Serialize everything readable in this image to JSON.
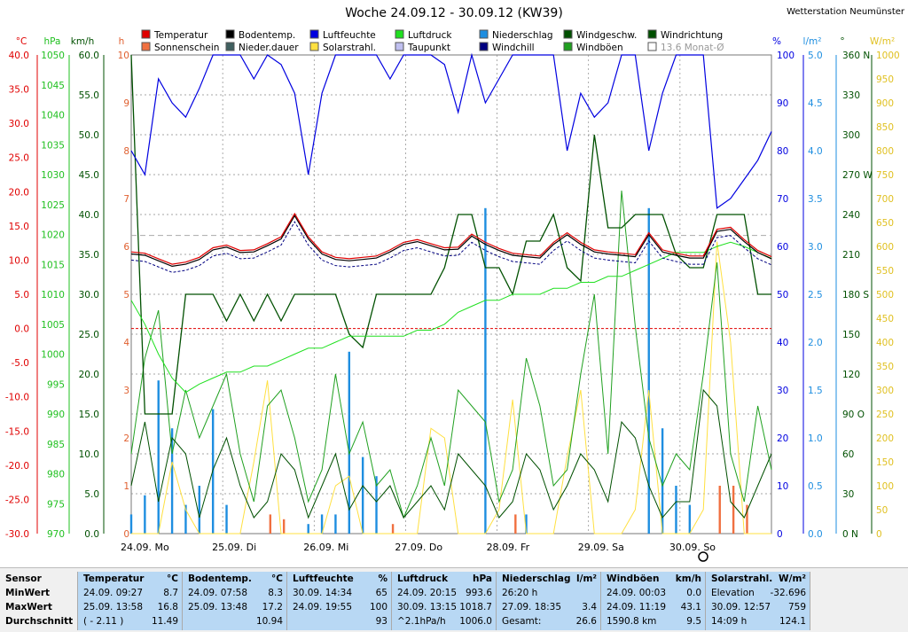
{
  "chart_data": {
    "type": "line",
    "title": "Woche 24.09.12 - 30.09.12 (KW39)",
    "station": "Wetterstation Neumünster",
    "x_labels": [
      "24.09.  Mo",
      "25.09.  Di",
      "26.09.  Mi",
      "27.09.  Do",
      "28.09.  Fr",
      "29.09.  Sa",
      "30.09.  So"
    ],
    "legend": [
      {
        "label": "Temperatur",
        "color": "#e00000"
      },
      {
        "label": "Bodentemp.",
        "color": "#000000"
      },
      {
        "label": "Luftfeuchte",
        "color": "#0000e0"
      },
      {
        "label": "Luftdruck",
        "color": "#20e020"
      },
      {
        "label": "Niederschlag",
        "color": "#1e8ee0"
      },
      {
        "label": "Windgeschw.",
        "color": "#005000"
      },
      {
        "label": "Windrichtung",
        "color": "#005000"
      },
      {
        "label": "Sonnenschein",
        "color": "#f07040"
      },
      {
        "label": "Nieder.dauer",
        "color": "#406060"
      },
      {
        "label": "Solarstrahl.",
        "color": "#ffe040"
      },
      {
        "label": "Taupunkt",
        "color": "#c0c0f0"
      },
      {
        "label": "Windchill",
        "color": "#000080"
      },
      {
        "label": "Windböen",
        "color": "#20a020"
      },
      {
        "label": "13.6 Monat-Ø",
        "color": "#ffffff"
      }
    ],
    "axes": {
      "temp": {
        "unit": "°C",
        "ticks": [
          "40.0",
          "35.0",
          "30.0",
          "25.0",
          "20.0",
          "15.0",
          "10.0",
          "5.0",
          "0.0",
          "-5.0",
          "-10.0",
          "-15.0",
          "-20.0",
          "-25.0",
          "-30.0"
        ]
      },
      "pressure": {
        "unit": "hPa",
        "ticks": [
          "1050",
          "1045",
          "1040",
          "1035",
          "1030",
          "1025",
          "1020",
          "1015",
          "1010",
          "1005",
          "1000",
          "995",
          "990",
          "985",
          "980",
          "975",
          "970"
        ]
      },
      "wind": {
        "unit": "km/h",
        "ticks": [
          "60.0",
          "55.0",
          "50.0",
          "45.0",
          "40.0",
          "35.0",
          "30.0",
          "25.0",
          "20.0",
          "15.0",
          "10.0",
          "5.0",
          "0.0"
        ]
      },
      "hours": {
        "unit": "h",
        "ticks": [
          "10",
          "9",
          "8",
          "7",
          "6",
          "5",
          "4",
          "3",
          "2",
          "1",
          "0"
        ]
      },
      "humidity": {
        "unit": "%",
        "ticks": [
          "100",
          "90",
          "80",
          "70",
          "60",
          "50",
          "40",
          "30",
          "20",
          "10",
          "0"
        ]
      },
      "rain": {
        "unit": "l/m²",
        "ticks": [
          "5.0",
          "4.5",
          "4.0",
          "3.5",
          "3.0",
          "2.5",
          "2.0",
          "1.5",
          "1.0",
          "0.5",
          "0.0"
        ]
      },
      "direction": {
        "unit": "°",
        "ticks": [
          "360 N",
          "330",
          "300",
          "270 W",
          "240",
          "210",
          "180 S",
          "150",
          "120",
          "90  O",
          "60",
          "30",
          "0     N"
        ]
      },
      "solar": {
        "unit": "W/m²",
        "ticks": [
          "1000",
          "950",
          "900",
          "850",
          "800",
          "750",
          "700",
          "650",
          "600",
          "550",
          "500",
          "450",
          "400",
          "350",
          "300",
          "250",
          "200",
          "150",
          "100",
          "50",
          "0"
        ]
      }
    },
    "series": [
      {
        "name": "Temperatur",
        "unit": "°C",
        "values": [
          11.2,
          11.0,
          10.2,
          9.4,
          9.7,
          10.4,
          11.8,
          12.2,
          11.4,
          11.5,
          12.4,
          13.4,
          16.8,
          13.4,
          11.2,
          10.4,
          10.2,
          10.4,
          10.6,
          11.5,
          12.6,
          13.0,
          12.4,
          11.8,
          11.9,
          13.8,
          12.6,
          11.7,
          11.0,
          10.8,
          10.6,
          12.6,
          14.0,
          12.6,
          11.5,
          11.2,
          11.0,
          10.8,
          14.0,
          11.5,
          11.0,
          10.6,
          10.6,
          14.5,
          14.8,
          13.0,
          11.4,
          10.5
        ]
      },
      {
        "name": "Luftfeuchte",
        "unit": "%",
        "values": [
          80,
          75,
          95,
          90,
          87,
          93,
          100,
          100,
          100,
          95,
          100,
          98,
          92,
          75,
          92,
          100,
          100,
          100,
          100,
          95,
          100,
          100,
          100,
          98,
          88,
          100,
          90,
          95,
          100,
          100,
          100,
          100,
          80,
          92,
          87,
          90,
          100,
          100,
          80,
          92,
          100,
          100,
          100,
          68,
          70,
          74,
          78,
          84
        ]
      },
      {
        "name": "Luftdruck",
        "unit": "hPa",
        "values": [
          1009,
          1005,
          1000,
          996,
          993.6,
          995,
          996,
          997,
          997,
          998,
          998,
          999,
          1000,
          1001,
          1001,
          1002,
          1003,
          1003,
          1003,
          1003,
          1003,
          1004,
          1004,
          1005,
          1007,
          1008,
          1009,
          1009,
          1010,
          1010,
          1010,
          1011,
          1011,
          1012,
          1012,
          1013,
          1013,
          1014,
          1015,
          1016,
          1017,
          1017,
          1017,
          1018,
          1018.7,
          1018,
          1017,
          1016
        ]
      },
      {
        "name": "Windgeschw.",
        "unit": "km/h",
        "values": [
          6,
          14,
          4,
          12,
          10,
          2,
          8,
          12,
          6,
          2,
          4,
          10,
          8,
          2,
          6,
          10,
          3,
          6,
          4,
          6,
          2,
          4,
          6,
          3,
          10,
          8,
          6,
          2,
          4,
          10,
          8,
          3,
          6,
          10,
          8,
          4,
          14,
          12,
          6,
          2,
          4,
          4,
          18,
          16,
          4,
          2,
          6,
          10
        ]
      },
      {
        "name": "Windrichtung",
        "unit": "°",
        "values": [
          360,
          90,
          90,
          90,
          180,
          180,
          180,
          160,
          180,
          160,
          180,
          160,
          180,
          180,
          180,
          180,
          150,
          140,
          180,
          180,
          180,
          180,
          180,
          200,
          240,
          240,
          200,
          200,
          180,
          220,
          220,
          240,
          200,
          190,
          300,
          230,
          230,
          240,
          240,
          240,
          210,
          200,
          200,
          240,
          240,
          240,
          180,
          180
        ]
      },
      {
        "name": "Solarstrahl.",
        "unit": "W/m²",
        "values": [
          0,
          0,
          0,
          150,
          50,
          0,
          0,
          0,
          0,
          150,
          320,
          0,
          0,
          0,
          0,
          100,
          120,
          0,
          0,
          0,
          0,
          0,
          220,
          200,
          0,
          0,
          0,
          50,
          280,
          0,
          0,
          0,
          160,
          300,
          0,
          0,
          0,
          50,
          300,
          0,
          0,
          0,
          50,
          610,
          400,
          0,
          0,
          0
        ]
      },
      {
        "name": "Niederschlag",
        "unit": "l/m²",
        "values": [
          0.2,
          0.4,
          1.6,
          1.1,
          0.3,
          0.5,
          1.3,
          0.3,
          0.0,
          0.0,
          0.0,
          0.0,
          0.0,
          0.1,
          0.2,
          0.2,
          1.9,
          0.8,
          0.6,
          0.0,
          0.0,
          0.0,
          0.0,
          0.0,
          0.0,
          0.0,
          3.4,
          0.0,
          0.0,
          0.2,
          0.0,
          0.0,
          0.0,
          0.0,
          0.0,
          0.0,
          0.0,
          0.0,
          3.4,
          1.1,
          0.5,
          0.3,
          0.0,
          0.0,
          0.0,
          0.0,
          0.0,
          0.0
        ]
      },
      {
        "name": "Sonnenschein",
        "unit": "h",
        "values": [
          0,
          0,
          0,
          0,
          0,
          0,
          0,
          0,
          0,
          0,
          0.4,
          0.3,
          0,
          0,
          0,
          0,
          0,
          0,
          0,
          0.2,
          0,
          0,
          0,
          0,
          0,
          0,
          0,
          0,
          0.4,
          0,
          0,
          0,
          0,
          0,
          0,
          0,
          0,
          0,
          0,
          0,
          0,
          0,
          0,
          1.0,
          1.0,
          0.6,
          0,
          0
        ]
      },
      {
        "name": "Windböen",
        "unit": "km/h",
        "values": [
          10,
          22,
          28,
          10,
          18,
          12,
          16,
          20,
          10,
          4,
          16,
          18,
          12,
          4,
          8,
          20,
          10,
          14,
          6,
          8,
          2,
          6,
          12,
          6,
          18,
          16,
          14,
          4,
          8,
          22,
          16,
          6,
          8,
          20,
          30,
          10,
          43,
          26,
          12,
          6,
          10,
          8,
          20,
          34,
          10,
          4,
          16,
          8
        ]
      }
    ],
    "ylim_temp": [
      -30,
      40
    ],
    "ylim_humidity": [
      0,
      100
    ],
    "ylim_pressure": [
      970,
      1050
    ],
    "ylim_wind": [
      0,
      60
    ],
    "ylim_direction": [
      0,
      360
    ],
    "ylim_solar": [
      0,
      1000
    ],
    "ylim_rain": [
      0,
      5
    ]
  },
  "stats": [
    {
      "title": "Sensor",
      "unit": "",
      "rows": [
        [
          "MinWert",
          ""
        ],
        [
          "MaxWert",
          ""
        ],
        [
          "Durchschnitt",
          ""
        ]
      ]
    },
    {
      "title": "Temperatur",
      "unit": "°C",
      "rows": [
        [
          "24.09.  09:27",
          "8.7"
        ],
        [
          "25.09.  13:58",
          "16.8"
        ],
        [
          "( - 2.11 )",
          "11.49"
        ]
      ]
    },
    {
      "title": "Bodentemp.",
      "unit": "°C",
      "rows": [
        [
          "24.09.  07:58",
          "8.3"
        ],
        [
          "25.09.  13:48",
          "17.2"
        ],
        [
          "",
          "10.94"
        ]
      ]
    },
    {
      "title": "Luftfeuchte",
      "unit": "%",
      "rows": [
        [
          "30.09.  14:34",
          "65"
        ],
        [
          "24.09.  19:55",
          "100"
        ],
        [
          "",
          "93"
        ]
      ]
    },
    {
      "title": "Luftdruck",
      "unit": "hPa",
      "rows": [
        [
          "24.09.  20:15",
          "993.6"
        ],
        [
          "30.09.  13:15",
          "1018.7"
        ],
        [
          "^2.1hPa/h",
          "1006.0"
        ]
      ]
    },
    {
      "title": "Niederschlag",
      "unit": "l/m²",
      "rows": [
        [
          "26:20 h",
          ""
        ],
        [
          "27.09.  18:35",
          "3.4"
        ],
        [
          "Gesamt:",
          "26.6"
        ]
      ]
    },
    {
      "title": "Windböen",
      "unit": "km/h",
      "rows": [
        [
          "24.09.  00:03",
          "0.0"
        ],
        [
          "24.09.  11:19",
          "43.1"
        ],
        [
          "1590.8 km",
          "9.5"
        ]
      ]
    },
    {
      "title": "Solarstrahl.",
      "unit": "W/m²",
      "rows": [
        [
          "Elevation",
          "-32.696"
        ],
        [
          "30.09.  12:57",
          "759"
        ],
        [
          "14:09 h",
          "124.1"
        ]
      ]
    }
  ]
}
